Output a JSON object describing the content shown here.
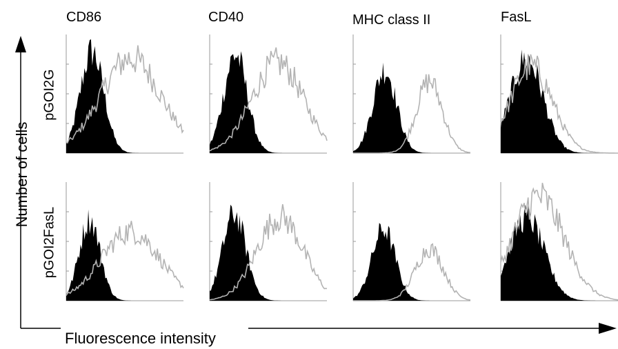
{
  "chart_data": {
    "type": "area",
    "panels_note": "",
    "columns": [
      "CD86",
      "CD40",
      "MHC class II",
      "FasL"
    ],
    "rows": [
      "pGOI2G",
      "pGOI2FasL"
    ],
    "xlabel": "Fluorescence intensity",
    "ylabel": "Number of cells",
    "x_range": [
      0,
      100
    ],
    "y_range": [
      0,
      100
    ],
    "series_colors": {
      "control_filled": "#000000",
      "stained_outline": "#b3b3b3"
    },
    "panels": [
      {
        "row": "pGOI2G",
        "column": "CD86",
        "filled": {
          "center": 22,
          "width": 10,
          "height": 88
        },
        "outline": {
          "center": 55,
          "width": 26,
          "height": 82
        }
      },
      {
        "row": "pGOI2G",
        "column": "CD40",
        "filled": {
          "center": 22,
          "width": 10,
          "height": 85
        },
        "outline": {
          "center": 58,
          "width": 22,
          "height": 78
        }
      },
      {
        "row": "pGOI2G",
        "column": "MHC class II",
        "filled": {
          "center": 27,
          "width": 10,
          "height": 72
        },
        "outline": {
          "center": 65,
          "width": 11,
          "height": 62
        }
      },
      {
        "row": "pGOI2G",
        "column": "FasL",
        "filled": {
          "center": 22,
          "width": 14,
          "height": 82
        },
        "outline": {
          "center": 26,
          "width": 18,
          "height": 75
        }
      },
      {
        "row": "pGOI2FasL",
        "column": "CD86",
        "filled": {
          "center": 20,
          "width": 9,
          "height": 70
        },
        "outline": {
          "center": 55,
          "width": 25,
          "height": 60
        }
      },
      {
        "row": "pGOI2FasL",
        "column": "CD40",
        "filled": {
          "center": 21,
          "width": 10,
          "height": 75
        },
        "outline": {
          "center": 60,
          "width": 20,
          "height": 72
        }
      },
      {
        "row": "pGOI2FasL",
        "column": "MHC class II",
        "filled": {
          "center": 26,
          "width": 10,
          "height": 62
        },
        "outline": {
          "center": 65,
          "width": 12,
          "height": 45
        }
      },
      {
        "row": "pGOI2FasL",
        "column": "FasL",
        "filled": {
          "center": 22,
          "width": 15,
          "height": 72
        },
        "outline": {
          "center": 32,
          "width": 22,
          "height": 90
        }
      }
    ]
  }
}
